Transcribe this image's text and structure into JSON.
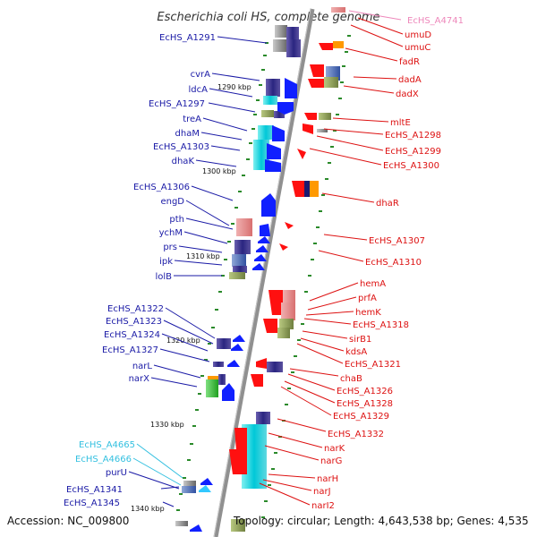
{
  "title": "Escherichia coli HS, complete genome",
  "footer": {
    "accession": "Accession: NC_009800",
    "summary": "Topology: circular; Length: 4,643,538 bp; Genes: 4,535"
  },
  "kbp_ticks": [
    "1290 kbp",
    "1300 kbp",
    "1310 kbp",
    "1320 kbp",
    "1330 kbp",
    "1340 kbp"
  ],
  "colors": {
    "left_label": "#1a1aa6",
    "left_label_light": "#33c0e0",
    "right_label": "#dd1111",
    "right_label_light": "#ee88bb",
    "backbone": "#909090",
    "tick": "#2a8a2a"
  },
  "left_labels": [
    "EcHS_A1291",
    "cvrA",
    "ldcA",
    "EcHS_A1297",
    "treA",
    "dhaM",
    "EcHS_A1303",
    "dhaK",
    "EcHS_A1306",
    "engD",
    "pth",
    "ychM",
    "prs",
    "ipk",
    "lolB",
    "EcHS_A1322",
    "EcHS_A1323",
    "EcHS_A1324",
    "EcHS_A1327",
    "narL",
    "narX",
    "EcHS_A4665",
    "EcHS_A4666",
    "purU",
    "EcHS_A1341",
    "EcHS_A1345"
  ],
  "right_labels": [
    "EcHS_A4741",
    "umuD",
    "umuC",
    "fadR",
    "dadA",
    "dadX",
    "mltE",
    "EcHS_A1298",
    "EcHS_A1299",
    "EcHS_A1300",
    "dhaR",
    "EcHS_A1307",
    "EcHS_A1310",
    "hemA",
    "prfA",
    "hemK",
    "EcHS_A1318",
    "sirB1",
    "kdsA",
    "EcHS_A1321",
    "chaB",
    "EcHS_A1326",
    "EcHS_A1328",
    "EcHS_A1329",
    "EcHS_A1332",
    "narK",
    "narG",
    "narH",
    "narJ",
    "narI2"
  ]
}
